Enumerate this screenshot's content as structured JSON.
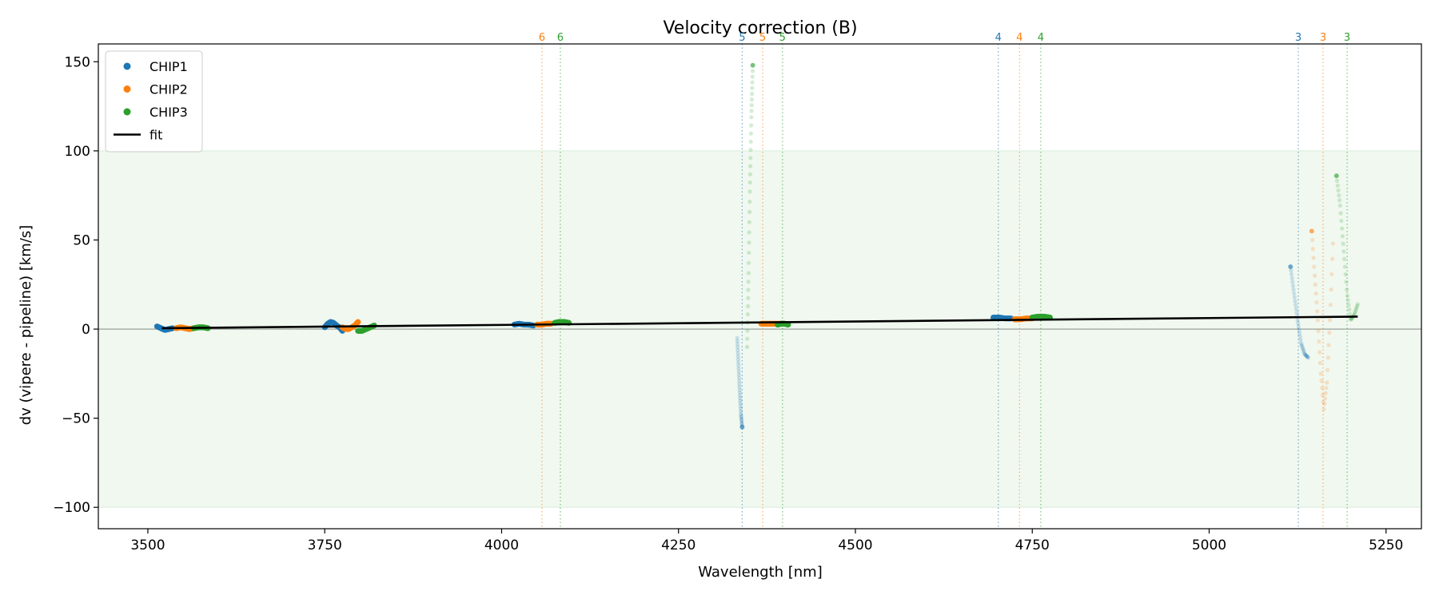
{
  "chart_data": {
    "type": "scatter",
    "title": "Velocity correction (B)",
    "xlabel": "Wavelength [nm]",
    "ylabel": "dv (vipere - pipeline) [km/s]",
    "xlim": [
      3430,
      5300
    ],
    "ylim": [
      -112,
      160
    ],
    "xticks": [
      3500,
      3750,
      4000,
      4250,
      4500,
      4750,
      5000,
      5250
    ],
    "yticks": [
      -100,
      -50,
      0,
      50,
      100,
      150
    ],
    "ytick_labels": [
      "−100",
      "−50",
      "0",
      "50",
      "100",
      "150"
    ],
    "accepted_band": [
      -100,
      100
    ],
    "band_color": "#2ca02c",
    "zero_line": 0,
    "legend": {
      "position": "top-left",
      "entries": [
        {
          "label": "CHIP1",
          "color": "#1f77b4",
          "kind": "marker"
        },
        {
          "label": "CHIP2",
          "color": "#ff7f0e",
          "kind": "marker"
        },
        {
          "label": "CHIP3",
          "color": "#2ca02c",
          "kind": "marker"
        },
        {
          "label": "fit",
          "color": "#000000",
          "kind": "line"
        }
      ]
    },
    "order_lines": [
      {
        "chip": "CHIP2",
        "order": "6",
        "x": 4057,
        "color": "#ff7f0e"
      },
      {
        "chip": "CHIP3",
        "order": "6",
        "x": 4083,
        "color": "#2ca02c"
      },
      {
        "chip": "CHIP1",
        "order": "5",
        "x": 4340,
        "color": "#1f77b4"
      },
      {
        "chip": "CHIP2",
        "order": "5",
        "x": 4369,
        "color": "#ff7f0e"
      },
      {
        "chip": "CHIP3",
        "order": "5",
        "x": 4397,
        "color": "#2ca02c"
      },
      {
        "chip": "CHIP1",
        "order": "4",
        "x": 4702,
        "color": "#1f77b4"
      },
      {
        "chip": "CHIP2",
        "order": "4",
        "x": 4732,
        "color": "#ff7f0e"
      },
      {
        "chip": "CHIP3",
        "order": "4",
        "x": 4762,
        "color": "#2ca02c"
      },
      {
        "chip": "CHIP1",
        "order": "3",
        "x": 5126,
        "color": "#1f77b4"
      },
      {
        "chip": "CHIP2",
        "order": "3",
        "x": 5161,
        "color": "#ff7f0e"
      },
      {
        "chip": "CHIP3",
        "order": "3",
        "x": 5195,
        "color": "#2ca02c"
      }
    ],
    "series": [
      {
        "name": "CHIP1",
        "color": "#1f77b4",
        "segments": [
          {
            "x0": 3513,
            "x1": 3535,
            "y": [
              1.5,
              0.5,
              -0.5,
              0,
              0.5
            ],
            "faded": false
          },
          {
            "x0": 3750,
            "x1": 3775,
            "y": [
              1,
              3,
              4,
              3.5,
              2,
              1,
              -1
            ],
            "faded": false
          },
          {
            "x0": 4018,
            "x1": 4045,
            "y": [
              2.5,
              3,
              2.5,
              2.5,
              2
            ],
            "faded": false
          },
          {
            "x0": 4695,
            "x1": 4720,
            "y": [
              6.5,
              6.5,
              6,
              6
            ],
            "faded": false
          },
          {
            "x0": 4333,
            "x1": 4340,
            "y": [
              -5,
              -20,
              -35,
              -48,
              -55
            ],
            "faded": true
          },
          {
            "x0": 5115,
            "x1": 5140,
            "y": [
              35,
              20,
              5,
              -8,
              -14,
              -16
            ],
            "faded": true
          }
        ]
      },
      {
        "name": "CHIP2",
        "color": "#ff7f0e",
        "segments": [
          {
            "x0": 3540,
            "x1": 3565,
            "y": [
              0.5,
              1,
              0.5,
              0,
              0.5
            ],
            "faded": false
          },
          {
            "x0": 3775,
            "x1": 3797,
            "y": [
              1,
              0,
              0,
              1,
              2,
              4
            ],
            "faded": false
          },
          {
            "x0": 4050,
            "x1": 4070,
            "y": [
              2.5,
              2.5,
              3,
              3
            ],
            "faded": false
          },
          {
            "x0": 4367,
            "x1": 4395,
            "y": [
              3,
              3,
              3,
              3
            ],
            "faded": false
          },
          {
            "x0": 4725,
            "x1": 4750,
            "y": [
              5.5,
              5.5,
              6,
              6
            ],
            "faded": false
          },
          {
            "x0": 5145,
            "x1": 5175,
            "y": [
              55,
              30,
              5,
              -25,
              -45,
              -30,
              5,
              48
            ],
            "faded": true
          }
        ]
      },
      {
        "name": "CHIP3",
        "color": "#2ca02c",
        "segments": [
          {
            "x0": 3565,
            "x1": 3585,
            "y": [
              0.5,
              1,
              1,
              0.5
            ],
            "faded": false
          },
          {
            "x0": 3797,
            "x1": 3820,
            "y": [
              -1,
              -1,
              0,
              1,
              2
            ],
            "faded": false
          },
          {
            "x0": 4075,
            "x1": 4095,
            "y": [
              3.5,
              4,
              4,
              3.5
            ],
            "faded": false
          },
          {
            "x0": 4390,
            "x1": 4405,
            "y": [
              2.5,
              3,
              3,
              2.5
            ],
            "faded": false
          },
          {
            "x0": 4750,
            "x1": 4775,
            "y": [
              6.5,
              7,
              7,
              6.5
            ],
            "faded": false
          },
          {
            "x0": 5180,
            "x1": 5210,
            "y": [
              86,
              70,
              45,
              20,
              5,
              8,
              14
            ],
            "faded": true
          },
          {
            "x0": 4347,
            "x1": 4355,
            "y": [
              -10,
              30,
              80,
              120,
              148
            ],
            "faded": true
          }
        ]
      }
    ],
    "fit": {
      "label": "fit",
      "color": "#000000",
      "x": [
        3520,
        5210
      ],
      "y": [
        0.5,
        7
      ]
    }
  }
}
